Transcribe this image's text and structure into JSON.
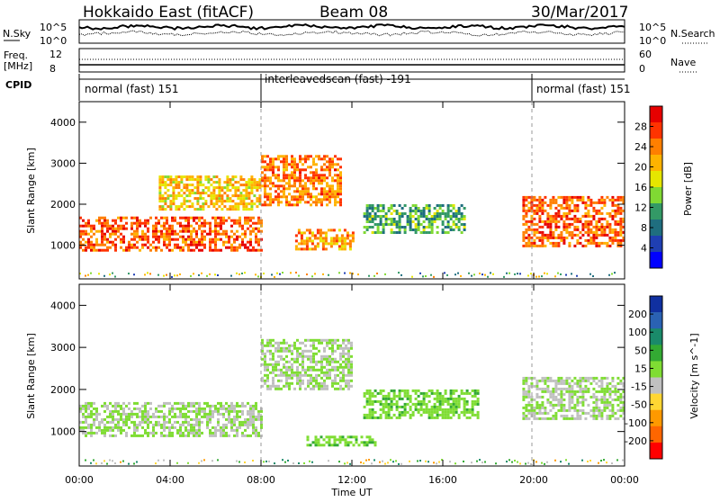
{
  "header": {
    "radar_title": "Hokkaido East (fitACF)",
    "beam": "Beam 08",
    "date": "30/Mar/2017"
  },
  "top_panels": {
    "nsky_label": "N.Sky",
    "nsearch_label": "N.Search",
    "freq_label_1": "Freq.",
    "freq_label_2": "[MHz]",
    "nave_label": "Nave",
    "cpid_label": "CPID",
    "noise_ticks": [
      "10^5",
      "10^0"
    ],
    "noise_ticks_right": [
      "10^5",
      "10^0"
    ],
    "freq_ticks": [
      "12",
      "8"
    ],
    "nave_ticks": [
      "60",
      "0"
    ]
  },
  "cpid_segments": [
    {
      "label": "normal (fast) 151"
    },
    {
      "label": "interleavedscan (fast) -191"
    },
    {
      "label": "normal (fast) 151"
    }
  ],
  "x_axis": {
    "label": "Time UT",
    "ticks": [
      "00:00",
      "04:00",
      "08:00",
      "12:00",
      "16:00",
      "20:00",
      "00:00"
    ]
  },
  "y_axis": {
    "label": "Slant Range [km]",
    "ticks": [
      "4000",
      "3000",
      "2000",
      "1000"
    ]
  },
  "power_colorbar": {
    "label": "Power [dB]",
    "ticks": [
      "28",
      "24",
      "20",
      "16",
      "12",
      "8",
      "4"
    ],
    "colors": [
      "#e60000",
      "#ff3300",
      "#ff7f00",
      "#ffb300",
      "#e6e600",
      "#80d933",
      "#339966",
      "#1f6e7f",
      "#1f3fb3",
      "#0000ff"
    ]
  },
  "velocity_colorbar": {
    "label": "Velocity [m s^-1]",
    "ticks": [
      "200",
      "100",
      "50",
      "15",
      "-15",
      "-50",
      "-100",
      "-200"
    ],
    "colors": [
      "#1030a0",
      "#2a62b3",
      "#1a8a6a",
      "#33aa33",
      "#7fdd33",
      "#c0c0c0",
      "#ffd633",
      "#ff9900",
      "#ff6600",
      "#ff0000"
    ]
  },
  "chart_data": {
    "type": "heatmap",
    "title": "Hokkaido East (fitACF)",
    "xlabel": "Time UT",
    "ylabel": "Slant Range [km]",
    "x_range_hours": [
      0,
      24
    ],
    "y_range_km": [
      180,
      4500
    ],
    "panels": [
      {
        "name": "Power",
        "colorbar_range_db": [
          0,
          32
        ],
        "features": [
          {
            "time_start": "00:00",
            "time_end": "08:00",
            "range_km": [
              900,
              1700
            ],
            "power_db": 26
          },
          {
            "time_start": "03:30",
            "time_end": "08:00",
            "range_km": [
              1900,
              2700
            ],
            "power_db": 20
          },
          {
            "time_start": "08:00",
            "time_end": "11:30",
            "range_km": [
              2000,
              3200
            ],
            "power_db": 24
          },
          {
            "time_start": "09:30",
            "time_end": "12:00",
            "range_km": [
              900,
              1400
            ],
            "power_db": 22
          },
          {
            "time_start": "12:30",
            "time_end": "17:00",
            "range_km": [
              1300,
              2000
            ],
            "power_db": 12
          },
          {
            "time_start": "19:30",
            "time_end": "24:00",
            "range_km": [
              1000,
              2200
            ],
            "power_db": 26
          }
        ]
      },
      {
        "name": "Velocity",
        "colorbar_range_ms": [
          -250,
          250
        ],
        "features": [
          {
            "time_start": "00:00",
            "time_end": "08:00",
            "range_km": [
              900,
              1700
            ],
            "velocity_ms": 0
          },
          {
            "time_start": "08:00",
            "time_end": "12:00",
            "range_km": [
              2000,
              3200
            ],
            "velocity_ms": 0
          },
          {
            "time_start": "10:00",
            "time_end": "13:00",
            "range_km": [
              700,
              900
            ],
            "velocity_ms": 40
          },
          {
            "time_start": "12:30",
            "time_end": "17:30",
            "range_km": [
              1300,
              2000
            ],
            "velocity_ms": 40
          },
          {
            "time_start": "19:30",
            "time_end": "24:00",
            "range_km": [
              1300,
              2300
            ],
            "velocity_ms": 0
          }
        ]
      }
    ]
  }
}
